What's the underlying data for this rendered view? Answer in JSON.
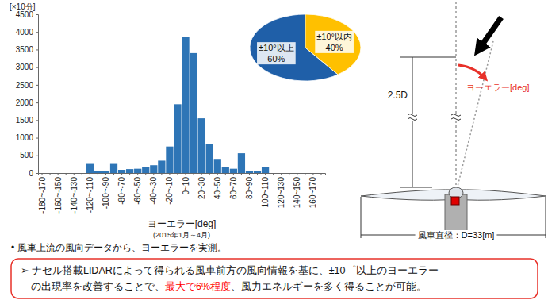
{
  "chart_data": [
    {
      "type": "bar",
      "ylabel": "[×10分]",
      "xlabel": "ヨーエラー[deg]",
      "subtitle": "(2015年1月～4月)",
      "categories": [
        "-180~-170",
        null,
        "-160~-150",
        null,
        "-140~-130",
        null,
        "-120~-110",
        null,
        "-100~-90",
        null,
        "-80~-70",
        null,
        "-60~-50",
        null,
        "-40~-30",
        null,
        "-20~-10",
        null,
        "0~10",
        null,
        "20~30",
        null,
        "40~50",
        null,
        "60~70",
        null,
        "80~90",
        null,
        "100~110",
        null,
        "120~130",
        null,
        "140~150",
        null,
        "160~170",
        null
      ],
      "values": [
        0,
        0,
        0,
        0,
        0,
        0,
        280,
        60,
        60,
        280,
        90,
        110,
        120,
        160,
        220,
        350,
        750,
        1950,
        3850,
        3400,
        1550,
        820,
        400,
        160,
        120,
        560,
        60,
        50,
        160,
        0,
        0,
        0,
        0,
        0,
        0,
        0
      ],
      "color": "#2e75b6",
      "ylim": [
        0,
        4500
      ],
      "yticks": [
        0,
        500,
        1000,
        1500,
        2000,
        2500,
        3000,
        3500,
        4000,
        4500
      ],
      "grid": false
    },
    {
      "type": "pie",
      "categories": [
        "±10°以上",
        "±10°以内"
      ],
      "values": [
        60,
        40
      ],
      "value_labels": [
        "60%",
        "40%"
      ],
      "colors": [
        "#1f5fa8",
        "#ffc000"
      ],
      "data_labels": true
    }
  ],
  "diagram": {
    "distance_label": "2.5D",
    "yaw_label": "ヨーエラー[deg]",
    "diameter_label": "風車直径：D=33[m]"
  },
  "notes": {
    "bullet": "•  風車上流の風向データから、ヨーエラーを実測。",
    "conclusion": [
      [
        {
          "text": "➢ ナセル搭載LIDARによって得られる風車前方の風向情報を基に、±10゜以上のヨーエラー"
        }
      ],
      [
        {
          "text": "　の出現率を改善することで、"
        },
        {
          "text": "最大で6%程度",
          "color": "#ff0000"
        },
        {
          "text": "、風力エネルギーを多く得ることが可能。"
        }
      ]
    ]
  }
}
